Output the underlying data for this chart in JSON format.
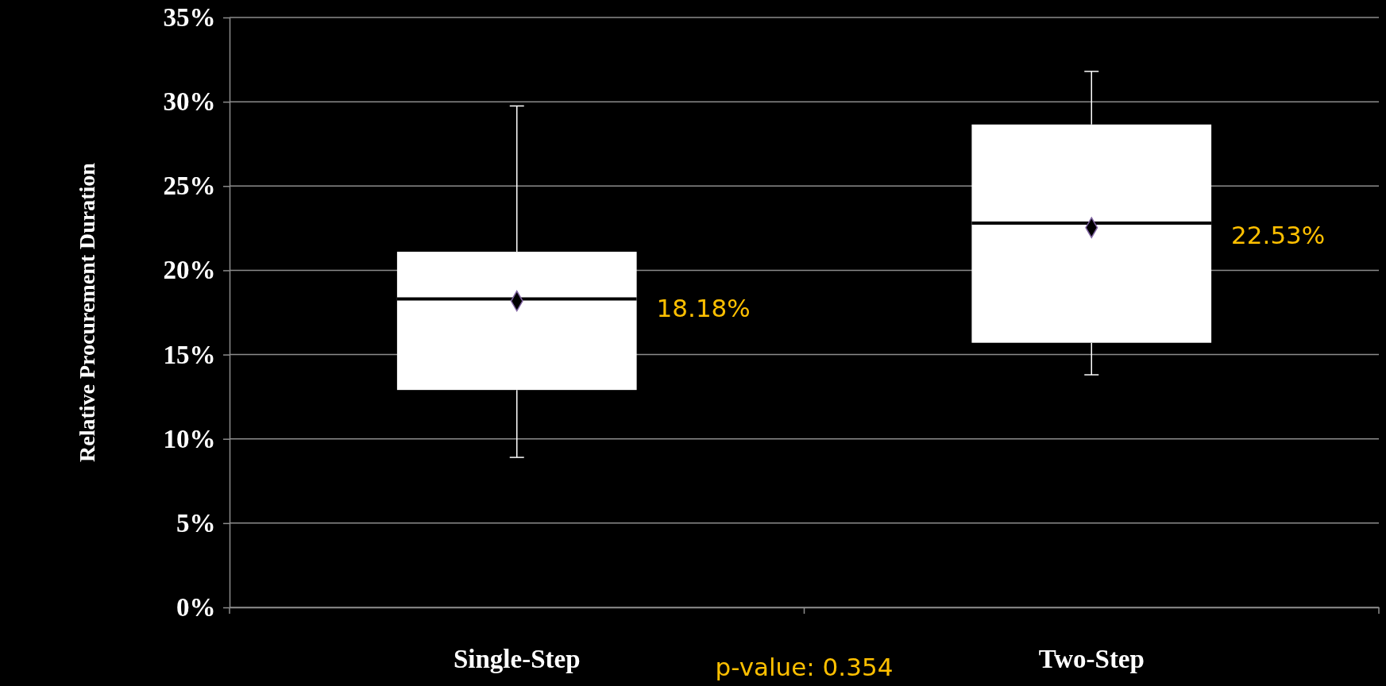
{
  "chart_data": {
    "type": "box",
    "ylabel": "Relative Procurement Duration",
    "categories": [
      "Single-Step",
      "Two-Step"
    ],
    "series": [
      {
        "color": "#ffffff",
        "boxes": [
          {
            "low": 8.9,
            "q1": 12.9,
            "median": 18.3,
            "q3": 21.1,
            "high": 29.75,
            "mean": 18.18
          },
          {
            "low": 13.8,
            "q1": 15.7,
            "median": 22.8,
            "q3": 28.65,
            "high": 31.8,
            "mean": 22.53
          }
        ]
      }
    ],
    "ylim": [
      0,
      35
    ],
    "yticks": [
      {
        "value": 0,
        "label": "0%"
      },
      {
        "value": 5,
        "label": "5%"
      },
      {
        "value": 10,
        "label": "10%"
      },
      {
        "value": 15,
        "label": "15%"
      },
      {
        "value": 20,
        "label": "20%"
      },
      {
        "value": 25,
        "label": "25%"
      },
      {
        "value": 30,
        "label": "30%"
      },
      {
        "value": 35,
        "label": "35%"
      }
    ],
    "grid": "y",
    "marker": "diamond",
    "annotations": [
      "18.18%",
      "22.53%",
      "p-value: 0.354"
    ]
  }
}
